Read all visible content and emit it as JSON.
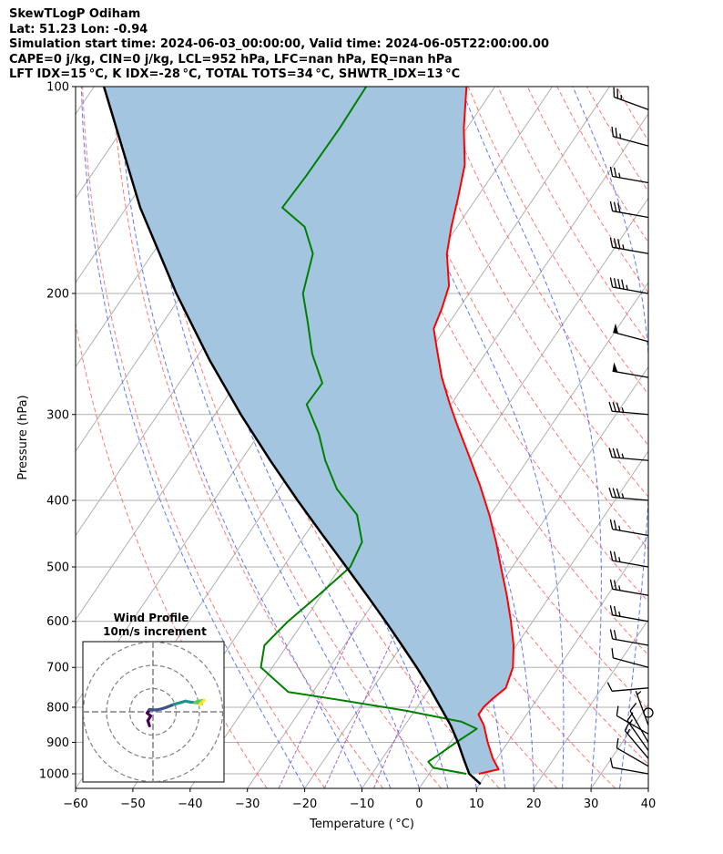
{
  "header": {
    "line1": "SkewTLogP Odiham",
    "line2": "Lat: 51.23   Lon: -0.94",
    "line3": "Simulation start time: 2024-06-03_00:00:00, Valid time: 2024-06-05T22:00:00.00",
    "line4": "CAPE=0 j/kg, CIN=0 j/kg, LCL=952 hPa, LFC=nan hPa, EQ=nan hPa",
    "line5": "LFT IDX=15 °C, K IDX=-28 °C, TOTAL TOTS=34 °C, SHWTR_IDX=13 °C"
  },
  "chart_data": {
    "type": "skewt-logp",
    "xlabel": "Temperature ( °C)",
    "ylabel": "Pressure (hPa)",
    "xlim": [
      -60,
      40
    ],
    "ylim_hpa": [
      1050,
      100
    ],
    "x_ticks": [
      {
        "v": -60,
        "label": "−60"
      },
      {
        "v": -50,
        "label": "−50"
      },
      {
        "v": -40,
        "label": "−40"
      },
      {
        "v": -30,
        "label": "−30"
      },
      {
        "v": -20,
        "label": "−20"
      },
      {
        "v": -10,
        "label": "−10"
      },
      {
        "v": 0,
        "label": "0"
      },
      {
        "v": 10,
        "label": "10"
      },
      {
        "v": 20,
        "label": "20"
      },
      {
        "v": 30,
        "label": "30"
      },
      {
        "v": 40,
        "label": "40"
      }
    ],
    "y_ticks": [
      {
        "v": 1000,
        "label": "1000"
      },
      {
        "v": 900,
        "label": "900"
      },
      {
        "v": 800,
        "label": "800"
      },
      {
        "v": 700,
        "label": "700"
      },
      {
        "v": 600,
        "label": "600"
      },
      {
        "v": 500,
        "label": "500"
      },
      {
        "v": 400,
        "label": "400"
      },
      {
        "v": 300,
        "label": "300"
      },
      {
        "v": 200,
        "label": "200"
      },
      {
        "v": 100,
        "label": "100"
      }
    ],
    "series": [
      {
        "role": "temperature",
        "color": "#ff0000",
        "points": [
          [
            1000,
            8.7
          ],
          [
            985,
            11.6
          ],
          [
            950,
            9.3
          ],
          [
            900,
            6.5
          ],
          [
            850,
            3.8
          ],
          [
            820,
            1.6
          ],
          [
            800,
            1.6
          ],
          [
            780,
            2.1
          ],
          [
            750,
            3.2
          ],
          [
            700,
            2.0
          ],
          [
            650,
            -0.5
          ],
          [
            600,
            -3.8
          ],
          [
            550,
            -7.6
          ],
          [
            500,
            -12.0
          ],
          [
            460,
            -15.8
          ],
          [
            420,
            -20.2
          ],
          [
            380,
            -25.4
          ],
          [
            340,
            -31.5
          ],
          [
            310,
            -36.6
          ],
          [
            290,
            -40.2
          ],
          [
            265,
            -44.8
          ],
          [
            240,
            -49.2
          ],
          [
            225,
            -52.0
          ],
          [
            210,
            -53.0
          ],
          [
            195,
            -54.4
          ],
          [
            175,
            -58.6
          ],
          [
            160,
            -61.0
          ],
          [
            145,
            -63.3
          ],
          [
            130,
            -66.0
          ],
          [
            115,
            -70.5
          ],
          [
            100,
            -75.0
          ]
        ]
      },
      {
        "role": "dewpoint",
        "color": "#008000",
        "points": [
          [
            1000,
            6.5
          ],
          [
            980,
            0.0
          ],
          [
            960,
            -1.6
          ],
          [
            940,
            -0.7
          ],
          [
            900,
            1.0
          ],
          [
            860,
            3.0
          ],
          [
            840,
            -0.5
          ],
          [
            810,
            -11.3
          ],
          [
            780,
            -24.7
          ],
          [
            760,
            -34.3
          ],
          [
            700,
            -42.0
          ],
          [
            650,
            -44.0
          ],
          [
            600,
            -42.7
          ],
          [
            550,
            -40.5
          ],
          [
            500,
            -38.3
          ],
          [
            460,
            -39.2
          ],
          [
            420,
            -43.3
          ],
          [
            385,
            -49.9
          ],
          [
            350,
            -55.3
          ],
          [
            320,
            -59.6
          ],
          [
            290,
            -65.2
          ],
          [
            270,
            -65.0
          ],
          [
            245,
            -70.2
          ],
          [
            220,
            -74.8
          ],
          [
            200,
            -79.0
          ],
          [
            175,
            -82.0
          ],
          [
            160,
            -86.6
          ],
          [
            150,
            -92.8
          ],
          [
            135,
            -92.4
          ],
          [
            115,
            -92.2
          ],
          [
            100,
            -92.5
          ]
        ]
      },
      {
        "role": "parcel",
        "color": "#000000",
        "points": [
          [
            1035,
            10.2
          ],
          [
            1000,
            7.0
          ],
          [
            952,
            4.3
          ],
          [
            900,
            1.3
          ],
          [
            850,
            -2.0
          ],
          [
            800,
            -5.9
          ],
          [
            750,
            -10.1
          ],
          [
            700,
            -14.8
          ],
          [
            650,
            -20.0
          ],
          [
            600,
            -25.7
          ],
          [
            550,
            -32.0
          ],
          [
            500,
            -39.0
          ],
          [
            450,
            -46.8
          ],
          [
            400,
            -55.4
          ],
          [
            350,
            -64.9
          ],
          [
            300,
            -75.5
          ],
          [
            250,
            -87.4
          ],
          [
            200,
            -101.1
          ],
          [
            150,
            -117.6
          ],
          [
            100,
            -138.3
          ]
        ]
      }
    ],
    "cape_cin_shading": {
      "color": "#a3c5df",
      "between": [
        "temperature",
        "parcel"
      ]
    },
    "background_lines": {
      "isotherms": {
        "color": "#b0b0b0",
        "step_c": 10
      },
      "dry_adiabats": {
        "color": "#ff6060",
        "style": "dashed"
      },
      "moist_adiabats": {
        "color": "#4060ff",
        "style": "dashed"
      },
      "mixing_ratio": {
        "color": "#9040c0",
        "style": "dashed"
      }
    },
    "wind_barbs": [
      {
        "p": 1000,
        "speed_kt": 10,
        "dir_deg": 280
      },
      {
        "p": 975,
        "speed_kt": 12,
        "dir_deg": 300
      },
      {
        "p": 950,
        "speed_kt": 15,
        "dir_deg": 320
      },
      {
        "p": 925,
        "speed_kt": 15,
        "dir_deg": 325
      },
      {
        "p": 900,
        "speed_kt": 10,
        "dir_deg": 330
      },
      {
        "p": 875,
        "speed_kt": 10,
        "dir_deg": 300
      },
      {
        "p": 850,
        "speed_kt": 5,
        "dir_deg": 340
      },
      {
        "p": 815,
        "speed_kt": 0,
        "dir_deg": 0
      },
      {
        "p": 750,
        "speed_kt": 10,
        "dir_deg": 265
      },
      {
        "p": 700,
        "speed_kt": 10,
        "dir_deg": 285
      },
      {
        "p": 650,
        "speed_kt": 20,
        "dir_deg": 280
      },
      {
        "p": 600,
        "speed_kt": 25,
        "dir_deg": 280
      },
      {
        "p": 550,
        "speed_kt": 25,
        "dir_deg": 280
      },
      {
        "p": 500,
        "speed_kt": 25,
        "dir_deg": 280
      },
      {
        "p": 450,
        "speed_kt": 25,
        "dir_deg": 280
      },
      {
        "p": 400,
        "speed_kt": 35,
        "dir_deg": 275
      },
      {
        "p": 350,
        "speed_kt": 35,
        "dir_deg": 275
      },
      {
        "p": 300,
        "speed_kt": 35,
        "dir_deg": 275
      },
      {
        "p": 265,
        "speed_kt": 50,
        "dir_deg": 280
      },
      {
        "p": 235,
        "speed_kt": 50,
        "dir_deg": 285
      },
      {
        "p": 200,
        "speed_kt": 45,
        "dir_deg": 280
      },
      {
        "p": 175,
        "speed_kt": 35,
        "dir_deg": 280
      },
      {
        "p": 155,
        "speed_kt": 30,
        "dir_deg": 280
      },
      {
        "p": 138,
        "speed_kt": 25,
        "dir_deg": 280
      },
      {
        "p": 122,
        "speed_kt": 25,
        "dir_deg": 285
      },
      {
        "p": 108,
        "speed_kt": 25,
        "dir_deg": 290
      }
    ],
    "hodograph": {
      "title": "Wind Profile",
      "subtitle": "10m/s increment",
      "rings_ms": [
        10,
        20,
        30
      ],
      "colormap": [
        "#440154",
        "#3b528b",
        "#21918c",
        "#5ec962",
        "#fde725"
      ],
      "points_uv": [
        [
          -1.5,
          -6
        ],
        [
          -2.2,
          -3.8
        ],
        [
          -1.0,
          -1.8
        ],
        [
          -2.5,
          -0.5
        ],
        [
          -1.5,
          1.0
        ],
        [
          1.2,
          0.8
        ],
        [
          3.5,
          1.2
        ],
        [
          6.0,
          2.0
        ],
        [
          9.0,
          3.2
        ],
        [
          12.0,
          4.0
        ],
        [
          14.0,
          4.6
        ],
        [
          16.0,
          4.2
        ],
        [
          18.0,
          4.0
        ],
        [
          21.0,
          3.5
        ],
        [
          19.0,
          4.5
        ],
        [
          22.0,
          5.0
        ],
        [
          20.0,
          3.0
        ]
      ]
    }
  }
}
